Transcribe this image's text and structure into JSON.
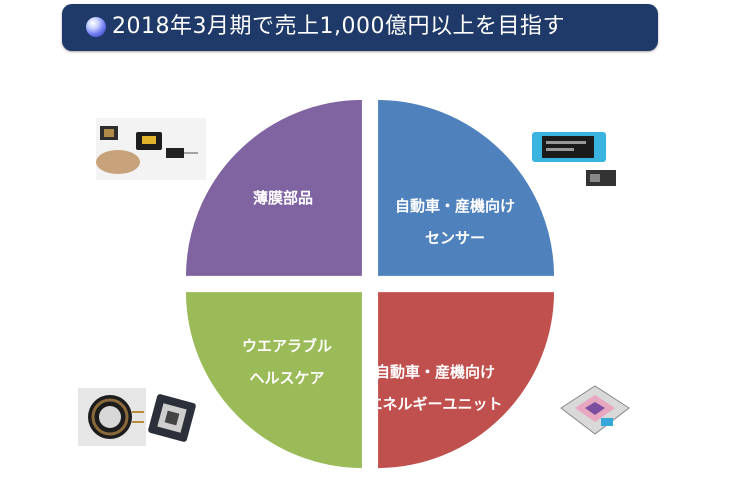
{
  "title": {
    "text": "2018年3月期で売上1,000億円以上を目指す",
    "bullet_icon": "blue-sphere-bullet-icon"
  },
  "colors": {
    "banner": "#1f3a68",
    "sensor": "#4f81bd",
    "energy": "#c0504d",
    "wearable": "#9bbb59",
    "thinfilm": "#8064a2"
  },
  "chart_data": {
    "type": "pie",
    "categories": [
      "自動車・産業向けセンサー",
      "自動車・産業向けエネルギーユニット",
      "ウエアラブルヘルスケア",
      "薄膜部品"
    ],
    "values": [
      25,
      25,
      25,
      25
    ],
    "exploded": true,
    "slice_labels": [
      {
        "line1": "自動車・産機向け",
        "line2": "センサー"
      },
      {
        "line1": "自動車・産機向け",
        "line2": "エネルギーユニット"
      },
      {
        "line1": "ウエアラブル",
        "line2": "ヘルスケア"
      },
      {
        "line1": "薄膜部品",
        "line2": ""
      }
    ]
  },
  "photos": {
    "sensor": "pressure-sensor-chip-photo",
    "energy": "energy-unit-module-photo",
    "wearable": "wireless-coil-and-module-photo",
    "thinfilm": "thin-film-components-photo"
  }
}
